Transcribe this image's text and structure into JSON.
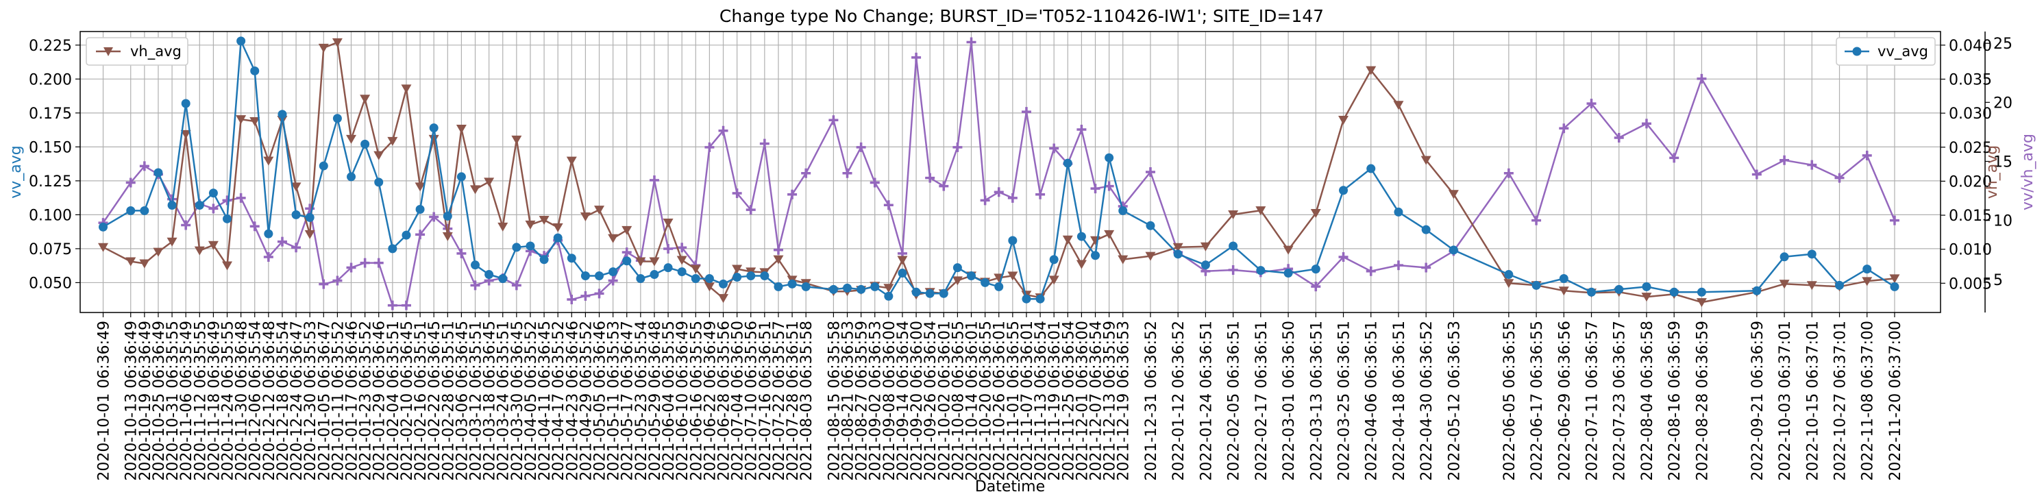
{
  "chart_data": {
    "type": "line",
    "title": "Change type No Change; BURST_ID='T052-110426-IW1'; SITE_ID=147",
    "xlabel": "Datetime",
    "colors": {
      "vv": "#1f77b4",
      "vh": "#8c564b",
      "ratio": "#9467bd"
    },
    "axes": {
      "vv": {
        "label": "vv_avg",
        "ylim": [
          0.028,
          0.235
        ],
        "ticks": [
          0.05,
          0.075,
          0.1,
          0.125,
          0.15,
          0.175,
          0.2,
          0.225
        ],
        "tick_labels": [
          "0.050",
          "0.075",
          "0.100",
          "0.125",
          "0.150",
          "0.175",
          "0.200",
          "0.225"
        ]
      },
      "vh": {
        "label": "vh_avg",
        "ylim": [
          0.0007,
          0.042
        ],
        "ticks": [
          0.005,
          0.01,
          0.015,
          0.02,
          0.025,
          0.03,
          0.035,
          0.04
        ],
        "tick_labels": [
          "0.005",
          "0.010",
          "0.015",
          "0.020",
          "0.025",
          "0.030",
          "0.035",
          "0.040"
        ]
      },
      "ratio": {
        "label": "vv/vh_avg",
        "ylim": [
          2.2,
          26.0
        ],
        "ticks": [
          5,
          10,
          15,
          20,
          25
        ],
        "tick_labels": [
          "5",
          "10",
          "15",
          "20",
          "25"
        ]
      }
    },
    "legend": {
      "vh": "vh_avg",
      "vv": "vv_avg",
      "vh_position": "upper-left",
      "vv_position": "upper-right"
    },
    "xlim": [
      "2020-09-21",
      "2022-12-10"
    ],
    "x_tick_labels": [
      "2020-10-01 06:36:49",
      "2020-10-13 06:36:49",
      "2020-10-19 06:36:49",
      "2020-10-25 06:36:49",
      "2020-10-31 06:35:55",
      "2020-11-06 06:35:49",
      "2020-11-12 06:35:55",
      "2020-11-18 06:36:49",
      "2020-11-24 06:35:55",
      "2020-11-30 06:36:48",
      "2020-12-06 06:35:54",
      "2020-12-12 06:36:48",
      "2020-12-18 06:35:54",
      "2020-12-24 06:36:47",
      "2020-12-30 06:35:53",
      "2021-01-05 06:36:47",
      "2021-01-11 06:35:52",
      "2021-01-17 06:36:46",
      "2021-01-23 06:35:52",
      "2021-01-29 06:36:46",
      "2021-02-04 06:35:51",
      "2021-02-10 06:36:45",
      "2021-02-16 06:35:51",
      "2021-02-22 06:36:45",
      "2021-02-28 06:35:51",
      "2021-03-06 06:36:45",
      "2021-03-12 06:35:51",
      "2021-03-18 06:36:45",
      "2021-03-24 06:35:51",
      "2021-03-30 06:36:45",
      "2021-04-05 06:35:52",
      "2021-04-11 06:36:45",
      "2021-04-17 06:35:52",
      "2021-04-23 06:36:46",
      "2021-04-29 06:35:52",
      "2021-05-05 06:36:46",
      "2021-05-11 06:35:53",
      "2021-05-17 06:36:47",
      "2021-05-23 06:35:54",
      "2021-05-29 06:36:48",
      "2021-06-04 06:35:55",
      "2021-06-10 06:36:49",
      "2021-06-16 06:35:55",
      "2021-06-22 06:36:49",
      "2021-06-28 06:35:56",
      "2021-07-04 06:36:50",
      "2021-07-10 06:35:56",
      "2021-07-16 06:36:51",
      "2021-07-22 06:35:57",
      "2021-07-28 06:36:51",
      "2021-08-03 06:35:58",
      "2021-08-15 06:35:58",
      "2021-08-21 06:36:53",
      "2021-08-27 06:35:59",
      "2021-09-02 06:36:53",
      "2021-09-08 06:36:00",
      "2021-09-14 06:36:54",
      "2021-09-20 06:36:00",
      "2021-09-26 06:36:54",
      "2021-10-02 06:36:01",
      "2021-10-08 06:36:55",
      "2021-10-14 06:36:01",
      "2021-10-20 06:36:55",
      "2021-10-26 06:36:01",
      "2021-11-01 06:36:55",
      "2021-11-07 06:36:01",
      "2021-11-13 06:36:54",
      "2021-11-19 06:36:01",
      "2021-11-25 06:36:54",
      "2021-12-01 06:36:00",
      "2021-12-07 06:36:54",
      "2021-12-13 06:35:59",
      "2021-12-19 06:36:53",
      "2021-12-31 06:36:52",
      "2022-01-12 06:36:52",
      "2022-01-24 06:36:51",
      "2022-02-05 06:36:51",
      "2022-02-17 06:36:51",
      "2022-03-01 06:36:50",
      "2022-03-13 06:36:51",
      "2022-03-25 06:36:51",
      "2022-04-06 06:36:51",
      "2022-04-18 06:36:51",
      "2022-04-30 06:36:52",
      "2022-05-12 06:36:53",
      "2022-06-05 06:36:55",
      "2022-06-17 06:36:55",
      "2022-06-29 06:36:56",
      "2022-07-11 06:36:57",
      "2022-07-23 06:36:57",
      "2022-08-04 06:36:58",
      "2022-08-16 06:36:59",
      "2022-08-28 06:36:59",
      "2022-09-21 06:36:59",
      "2022-10-03 06:37:01",
      "2022-10-15 06:37:01",
      "2022-10-27 06:37:01",
      "2022-11-08 06:37:00",
      "2022-11-20 06:37:00"
    ],
    "x": [
      "2020-10-01",
      "2020-10-13",
      "2020-10-19",
      "2020-10-25",
      "2020-10-31",
      "2020-11-06",
      "2020-11-12",
      "2020-11-18",
      "2020-11-24",
      "2020-11-30",
      "2020-12-06",
      "2020-12-12",
      "2020-12-18",
      "2020-12-24",
      "2020-12-30",
      "2021-01-05",
      "2021-01-11",
      "2021-01-17",
      "2021-01-23",
      "2021-01-29",
      "2021-02-04",
      "2021-02-10",
      "2021-02-16",
      "2021-02-22",
      "2021-02-28",
      "2021-03-06",
      "2021-03-12",
      "2021-03-18",
      "2021-03-24",
      "2021-03-30",
      "2021-04-05",
      "2021-04-11",
      "2021-04-17",
      "2021-04-23",
      "2021-04-29",
      "2021-05-05",
      "2021-05-11",
      "2021-05-17",
      "2021-05-23",
      "2021-05-29",
      "2021-06-04",
      "2021-06-10",
      "2021-06-16",
      "2021-06-22",
      "2021-06-28",
      "2021-07-04",
      "2021-07-10",
      "2021-07-16",
      "2021-07-22",
      "2021-07-28",
      "2021-08-03",
      "2021-08-15",
      "2021-08-21",
      "2021-08-27",
      "2021-09-02",
      "2021-09-08",
      "2021-09-14",
      "2021-09-20",
      "2021-09-26",
      "2021-10-02",
      "2021-10-08",
      "2021-10-14",
      "2021-10-20",
      "2021-10-26",
      "2021-11-01",
      "2021-11-07",
      "2021-11-13",
      "2021-11-19",
      "2021-11-25",
      "2021-12-01",
      "2021-12-07",
      "2021-12-13",
      "2021-12-19",
      "2021-12-31",
      "2022-01-12",
      "2022-01-24",
      "2022-02-05",
      "2022-02-17",
      "2022-03-01",
      "2022-03-13",
      "2022-03-25",
      "2022-04-06",
      "2022-04-18",
      "2022-04-30",
      "2022-05-12",
      "2022-06-05",
      "2022-06-17",
      "2022-06-29",
      "2022-07-11",
      "2022-07-23",
      "2022-08-04",
      "2022-08-16",
      "2022-08-28",
      "2022-09-21",
      "2022-10-03",
      "2022-10-15",
      "2022-10-27",
      "2022-11-08",
      "2022-11-20"
    ],
    "series": [
      {
        "name": "vv_avg",
        "axis": "vv",
        "marker": "circle",
        "values": [
          0.091,
          0.103,
          0.103,
          0.131,
          0.107,
          0.182,
          0.107,
          0.116,
          0.097,
          0.228,
          0.206,
          0.086,
          0.174,
          0.1,
          0.098,
          0.136,
          0.171,
          0.128,
          0.152,
          0.124,
          0.075,
          0.085,
          0.104,
          0.164,
          0.099,
          0.128,
          0.063,
          0.056,
          0.053,
          0.076,
          0.077,
          0.067,
          0.083,
          0.068,
          0.055,
          0.055,
          0.058,
          0.066,
          0.053,
          0.056,
          0.061,
          0.058,
          0.053,
          0.053,
          0.049,
          0.054,
          0.055,
          0.055,
          0.047,
          0.049,
          0.047,
          0.045,
          0.046,
          0.045,
          0.047,
          0.04,
          0.057,
          0.043,
          0.042,
          0.042,
          0.061,
          0.055,
          0.05,
          0.047,
          0.081,
          0.038,
          0.038,
          0.067,
          0.138,
          0.084,
          0.07,
          0.142,
          0.103,
          0.092,
          0.071,
          0.063,
          0.077,
          0.059,
          0.057,
          0.06,
          0.118,
          0.134,
          0.102,
          0.089,
          0.074,
          0.056,
          0.048,
          0.053,
          0.043,
          0.045,
          0.047,
          0.043,
          0.043,
          0.044,
          0.069,
          0.071,
          0.048,
          0.06,
          0.047
        ]
      },
      {
        "name": "vh_avg",
        "axis": "vh",
        "marker": "triangle-down",
        "values": [
          0.0103,
          0.0082,
          0.0079,
          0.0096,
          0.0111,
          0.0269,
          0.0098,
          0.0106,
          0.0076,
          0.0291,
          0.0288,
          0.023,
          0.029,
          0.0192,
          0.0122,
          0.0396,
          0.0404,
          0.0262,
          0.0321,
          0.0238,
          0.0259,
          0.0336,
          0.0192,
          0.0262,
          0.0119,
          0.0277,
          0.0188,
          0.0199,
          0.0133,
          0.0261,
          0.0136,
          0.0143,
          0.0132,
          0.023,
          0.0148,
          0.0158,
          0.0116,
          0.0128,
          0.0082,
          0.0082,
          0.0139,
          0.0084,
          0.0071,
          0.0045,
          0.0028,
          0.0071,
          0.0067,
          0.0066,
          0.0085,
          0.0055,
          0.005,
          0.0038,
          0.0038,
          0.004,
          0.0046,
          0.0043,
          0.0084,
          0.0033,
          0.0037,
          0.0035,
          0.0054,
          0.0061,
          0.0052,
          0.0058,
          0.0061,
          0.0033,
          0.0029,
          0.0055,
          0.0114,
          0.0078,
          0.0113,
          0.0122,
          0.0085,
          0.009,
          0.0103,
          0.0104,
          0.0151,
          0.0157,
          0.0099,
          0.0153,
          0.029,
          0.0363,
          0.0312,
          0.0231,
          0.0181,
          0.005,
          0.0047,
          0.0039,
          0.0036,
          0.0037,
          0.003,
          0.0034,
          0.0022,
          0.0037,
          0.0049,
          0.0047,
          0.0045,
          0.0053,
          0.0057
        ]
      },
      {
        "name": "",
        "axis": "ratio",
        "marker": "plus",
        "values": [
          9.8,
          13.2,
          14.6,
          13.9,
          11.8,
          9.6,
          11.4,
          11.0,
          11.7,
          11.9,
          9.5,
          6.9,
          8.2,
          7.7,
          11.0,
          4.6,
          4.9,
          6.0,
          6.4,
          6.4,
          2.8,
          2.8,
          8.8,
          10.3,
          9.3,
          7.2,
          4.5,
          4.9,
          5.1,
          4.5,
          7.4,
          7.0,
          8.3,
          3.3,
          3.6,
          3.8,
          4.9,
          7.3,
          6.6,
          13.4,
          7.6,
          7.7,
          6.2,
          16.2,
          17.6,
          12.3,
          10.9,
          16.5,
          7.5,
          12.2,
          14.0,
          18.5,
          14.0,
          16.2,
          13.2,
          11.3,
          7.2,
          23.8,
          13.6,
          12.9,
          16.2,
          25.1,
          11.7,
          12.4,
          11.9,
          19.2,
          12.2,
          16.1,
          14.8,
          17.7,
          12.7,
          12.9,
          11.2,
          14.1,
          7.3,
          5.7,
          5.8,
          5.6,
          5.9,
          4.4,
          6.9,
          5.7,
          6.2,
          6.0,
          7.4,
          14.0,
          10.0,
          17.8,
          19.9,
          17.0,
          18.2,
          15.3,
          22.0,
          13.9,
          15.1,
          14.7,
          13.6,
          15.5,
          10.0
        ]
      }
    ]
  }
}
